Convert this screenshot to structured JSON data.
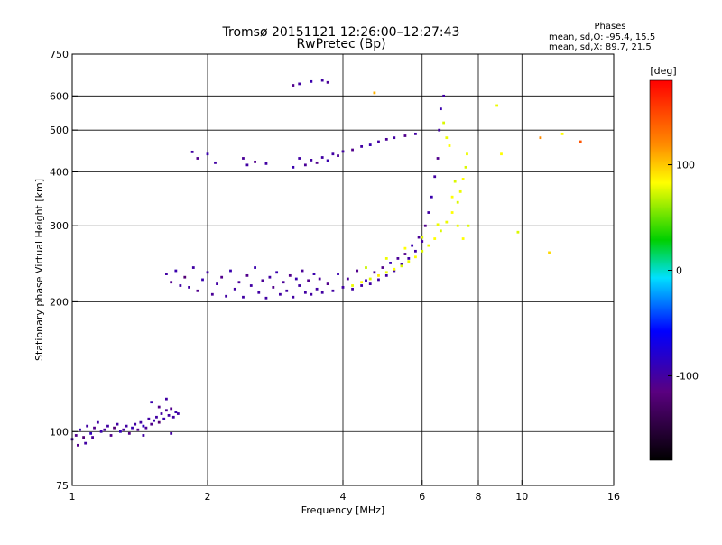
{
  "header": {
    "title": "Tromsø 20151121 12:26:00–12:27:43",
    "subtitle": "RwPretec (Bp)",
    "stats_title": "Phases",
    "stats_o": "mean, sd,O: -95.4, 15.5",
    "stats_x": "mean, sd,X: 89.7, 21.5"
  },
  "colorbar": {
    "unit_label": "[deg]",
    "range": [
      -180,
      180
    ],
    "ticks": [
      {
        "value": 100,
        "label": "100"
      },
      {
        "value": 0,
        "label": "0"
      },
      {
        "value": -100,
        "label": "-100"
      }
    ]
  },
  "chart_data": {
    "type": "scatter",
    "title": "Tromsø 20151121 12:26:00–12:27:43",
    "subtitle": "RwPretec (Bp)",
    "xlabel": "Frequency [MHz]",
    "ylabel": "Stationary phase Virtual Height [km]",
    "x_scale": "log",
    "y_scale": "log",
    "xlim": [
      1,
      16
    ],
    "ylim": [
      75,
      750
    ],
    "grid": true,
    "x_ticks": [
      {
        "value": 1,
        "label": "1"
      },
      {
        "value": 2,
        "label": "2"
      },
      {
        "value": 4,
        "label": "4"
      },
      {
        "value": 6,
        "label": "6"
      },
      {
        "value": 8,
        "label": "8"
      },
      {
        "value": 10,
        "label": "10"
      },
      {
        "value": 16,
        "label": "16"
      }
    ],
    "x_grid": [
      2,
      4,
      6,
      8,
      10
    ],
    "y_ticks": [
      {
        "value": 75,
        "label": "75"
      },
      {
        "value": 100,
        "label": "100"
      },
      {
        "value": 200,
        "label": "200"
      },
      {
        "value": 300,
        "label": "300"
      },
      {
        "value": 400,
        "label": "400"
      },
      {
        "value": 500,
        "label": "500"
      },
      {
        "value": 600,
        "label": "600"
      },
      {
        "value": 750,
        "label": "750"
      }
    ],
    "y_grid": [
      100,
      200,
      300,
      400,
      500,
      600
    ],
    "color_encoding": "phase in degrees (colorbar)",
    "series": [
      {
        "name": "O-mode",
        "points": [
          [
            1.0,
            96,
            -100
          ],
          [
            1.02,
            98,
            -110
          ],
          [
            1.04,
            101,
            -95
          ],
          [
            1.06,
            97,
            -120
          ],
          [
            1.08,
            103,
            -100
          ],
          [
            1.1,
            99,
            -90
          ],
          [
            1.12,
            102,
            -110
          ],
          [
            1.14,
            105,
            -100
          ],
          [
            1.16,
            100,
            -95
          ],
          [
            1.18,
            101,
            -105
          ],
          [
            1.2,
            103,
            -100
          ],
          [
            1.22,
            98,
            -110
          ],
          [
            1.24,
            102,
            -120
          ],
          [
            1.26,
            104,
            -100
          ],
          [
            1.28,
            100,
            -90
          ],
          [
            1.3,
            101,
            -105
          ],
          [
            1.32,
            103,
            -100
          ],
          [
            1.34,
            99,
            -110
          ],
          [
            1.36,
            102,
            -95
          ],
          [
            1.38,
            104,
            -100
          ],
          [
            1.4,
            101,
            -110
          ],
          [
            1.42,
            105,
            -100
          ],
          [
            1.44,
            103,
            -90
          ],
          [
            1.46,
            102,
            -105
          ],
          [
            1.48,
            107,
            -100
          ],
          [
            1.5,
            104,
            -110
          ],
          [
            1.52,
            106,
            -95
          ],
          [
            1.54,
            108,
            -100
          ],
          [
            1.56,
            105,
            -120
          ],
          [
            1.58,
            110,
            -100
          ],
          [
            1.6,
            107,
            -95
          ],
          [
            1.62,
            112,
            -105
          ],
          [
            1.64,
            109,
            -100
          ],
          [
            1.66,
            113,
            -110
          ],
          [
            1.68,
            108,
            -100
          ],
          [
            1.7,
            111,
            -95
          ],
          [
            1.72,
            110,
            -100
          ],
          [
            1.03,
            93,
            -110
          ],
          [
            1.07,
            94,
            -100
          ],
          [
            1.11,
            97,
            -105
          ],
          [
            1.44,
            98,
            -100
          ],
          [
            1.5,
            117,
            -95
          ],
          [
            1.56,
            114,
            -110
          ],
          [
            1.62,
            119,
            -100
          ],
          [
            1.66,
            99,
            -100
          ],
          [
            1.62,
            232,
            -100
          ],
          [
            1.66,
            222,
            -110
          ],
          [
            1.7,
            236,
            -95
          ],
          [
            1.74,
            218,
            -100
          ],
          [
            1.78,
            228,
            -120
          ],
          [
            1.82,
            216,
            -100
          ],
          [
            1.86,
            240,
            -100
          ],
          [
            1.9,
            212,
            -110
          ],
          [
            1.95,
            225,
            -95
          ],
          [
            2.0,
            234,
            -100
          ],
          [
            2.05,
            208,
            -105
          ],
          [
            2.1,
            220,
            -100
          ],
          [
            2.15,
            228,
            -110
          ],
          [
            2.2,
            206,
            -100
          ],
          [
            2.25,
            236,
            -95
          ],
          [
            2.3,
            214,
            -100
          ],
          [
            2.35,
            222,
            -105
          ],
          [
            2.4,
            205,
            -100
          ],
          [
            2.45,
            230,
            -110
          ],
          [
            2.5,
            218,
            -100
          ],
          [
            2.55,
            240,
            -95
          ],
          [
            2.6,
            210,
            -100
          ],
          [
            2.65,
            224,
            -105
          ],
          [
            2.7,
            204,
            -100
          ],
          [
            2.75,
            228,
            -100
          ],
          [
            2.8,
            216,
            -110
          ],
          [
            2.85,
            234,
            -95
          ],
          [
            2.9,
            208,
            -100
          ],
          [
            2.95,
            222,
            -105
          ],
          [
            3.0,
            212,
            -100
          ],
          [
            3.05,
            230,
            -110
          ],
          [
            3.1,
            205,
            -100
          ],
          [
            3.15,
            226,
            -95
          ],
          [
            3.2,
            218,
            -100
          ],
          [
            3.25,
            236,
            -105
          ],
          [
            3.3,
            210,
            -100
          ],
          [
            3.35,
            224,
            -110
          ],
          [
            3.4,
            208,
            -100
          ],
          [
            3.45,
            232,
            -95
          ],
          [
            3.5,
            214,
            -100
          ],
          [
            3.55,
            226,
            -105
          ],
          [
            3.6,
            210,
            -100
          ],
          [
            3.7,
            220,
            -110
          ],
          [
            3.8,
            212,
            -100
          ],
          [
            3.9,
            232,
            -95
          ],
          [
            4.0,
            216,
            -100
          ],
          [
            4.1,
            226,
            -105
          ],
          [
            4.2,
            214,
            -100
          ],
          [
            4.3,
            236,
            -110
          ],
          [
            4.4,
            218,
            -100
          ],
          [
            4.5,
            224,
            -95
          ],
          [
            4.6,
            220,
            -100
          ],
          [
            4.7,
            234,
            -105
          ],
          [
            4.8,
            225,
            -100
          ],
          [
            4.9,
            240,
            -110
          ],
          [
            5.0,
            230,
            -100
          ],
          [
            5.1,
            246,
            -95
          ],
          [
            5.2,
            236,
            -100
          ],
          [
            5.3,
            252,
            -105
          ],
          [
            5.4,
            244,
            -100
          ],
          [
            5.5,
            258,
            -110
          ],
          [
            5.6,
            252,
            -100
          ],
          [
            5.7,
            270,
            -95
          ],
          [
            5.8,
            262,
            -100
          ],
          [
            5.9,
            282,
            -105
          ],
          [
            6.0,
            276,
            -100
          ],
          [
            6.1,
            300,
            -110
          ],
          [
            6.2,
            322,
            -100
          ],
          [
            6.3,
            350,
            -95
          ],
          [
            6.4,
            390,
            -100
          ],
          [
            6.5,
            430,
            -110
          ],
          [
            6.55,
            500,
            -100
          ],
          [
            6.6,
            560,
            -95
          ],
          [
            6.7,
            600,
            -100
          ],
          [
            1.85,
            445,
            -100
          ],
          [
            1.9,
            430,
            -110
          ],
          [
            2.0,
            440,
            -95
          ],
          [
            2.08,
            420,
            -100
          ],
          [
            2.4,
            430,
            -105
          ],
          [
            2.45,
            415,
            -100
          ],
          [
            2.55,
            422,
            -110
          ],
          [
            2.7,
            418,
            -100
          ],
          [
            3.1,
            410,
            -95
          ],
          [
            3.2,
            430,
            -100
          ],
          [
            3.3,
            415,
            -105
          ],
          [
            3.4,
            426,
            -100
          ],
          [
            3.5,
            420,
            -110
          ],
          [
            3.6,
            432,
            -100
          ],
          [
            3.7,
            425,
            -95
          ],
          [
            3.8,
            440,
            -100
          ],
          [
            3.9,
            436,
            -105
          ],
          [
            4.0,
            446,
            -100
          ],
          [
            4.2,
            450,
            -110
          ],
          [
            4.4,
            458,
            -100
          ],
          [
            4.6,
            462,
            -95
          ],
          [
            4.8,
            470,
            -100
          ],
          [
            5.0,
            476,
            -105
          ],
          [
            5.2,
            480,
            -100
          ],
          [
            5.5,
            485,
            -110
          ],
          [
            5.8,
            490,
            -100
          ],
          [
            3.1,
            635,
            -110
          ],
          [
            3.2,
            640,
            -100
          ],
          [
            3.4,
            648,
            -95
          ],
          [
            3.6,
            652,
            -100
          ],
          [
            3.7,
            645,
            -105
          ]
        ]
      },
      {
        "name": "X-mode",
        "points": [
          [
            4.2,
            218,
            95
          ],
          [
            4.4,
            222,
            100
          ],
          [
            4.6,
            226,
            90
          ],
          [
            4.8,
            230,
            105
          ],
          [
            5.0,
            234,
            95
          ],
          [
            5.2,
            238,
            100
          ],
          [
            5.4,
            242,
            90
          ],
          [
            5.6,
            248,
            95
          ],
          [
            5.8,
            254,
            100
          ],
          [
            6.0,
            262,
            90
          ],
          [
            6.2,
            270,
            95
          ],
          [
            6.4,
            280,
            100
          ],
          [
            6.6,
            292,
            90
          ],
          [
            6.8,
            306,
            95
          ],
          [
            7.0,
            322,
            100
          ],
          [
            7.2,
            340,
            90
          ],
          [
            7.3,
            360,
            95
          ],
          [
            7.4,
            385,
            100
          ],
          [
            7.5,
            410,
            90
          ],
          [
            7.55,
            440,
            95
          ],
          [
            4.5,
            240,
            85
          ],
          [
            5.0,
            252,
            95
          ],
          [
            5.5,
            266,
            100
          ],
          [
            6.0,
            282,
            90
          ],
          [
            6.5,
            302,
            95
          ],
          [
            7.0,
            350,
            100
          ],
          [
            6.7,
            520,
            90
          ],
          [
            6.8,
            480,
            95
          ],
          [
            6.9,
            460,
            100
          ],
          [
            7.1,
            380,
            90
          ],
          [
            7.2,
            300,
            95
          ],
          [
            7.4,
            280,
            100
          ],
          [
            7.6,
            300,
            90
          ],
          [
            8.8,
            570,
            95
          ],
          [
            9.0,
            440,
            100
          ],
          [
            9.8,
            290,
            90
          ],
          [
            4.7,
            610,
            120
          ],
          [
            11.0,
            480,
            130
          ],
          [
            11.5,
            260,
            110
          ],
          [
            12.3,
            490,
            100
          ],
          [
            13.5,
            470,
            150
          ]
        ]
      }
    ]
  }
}
